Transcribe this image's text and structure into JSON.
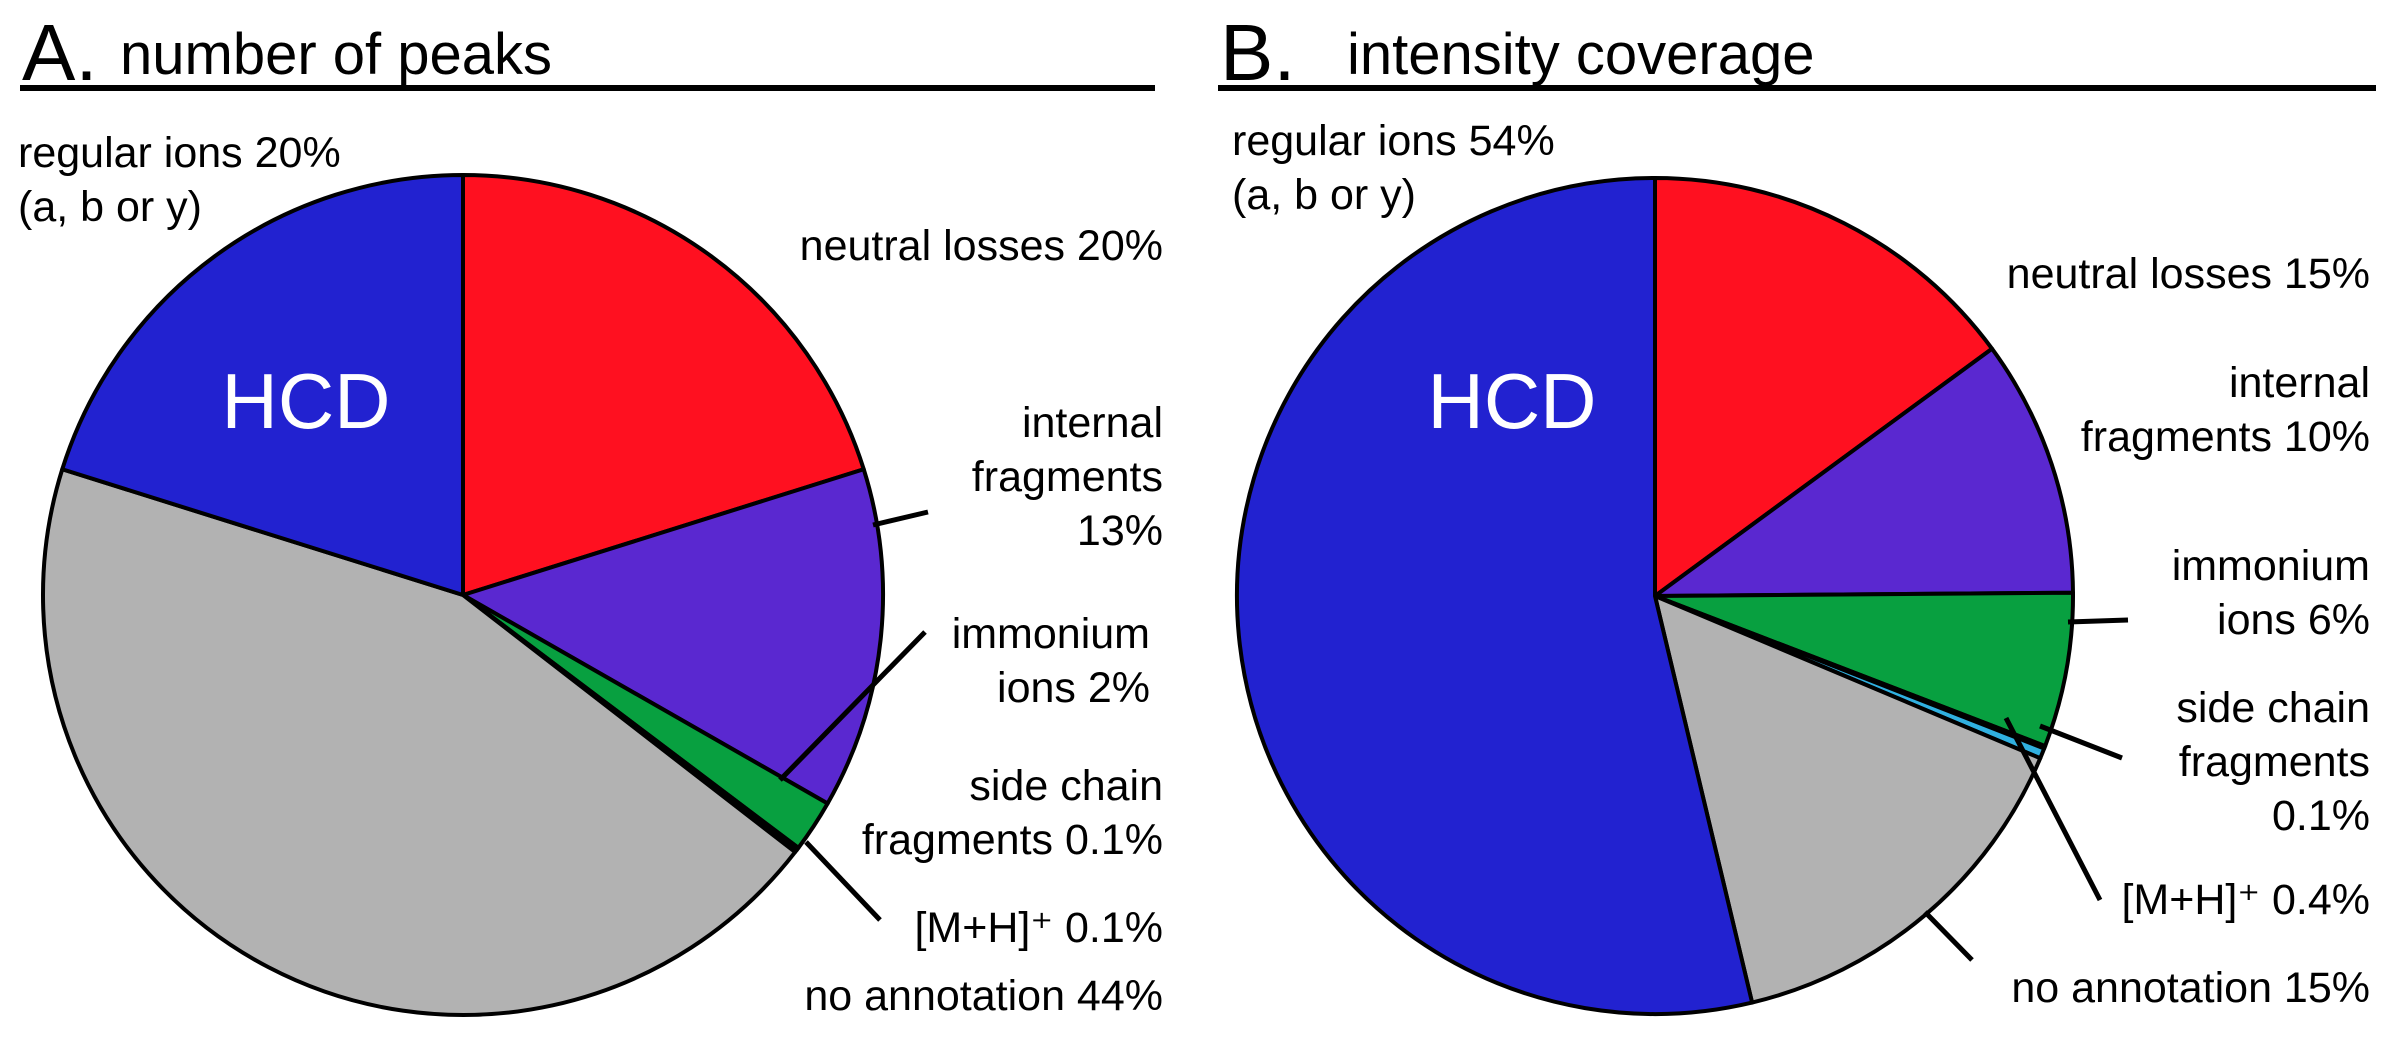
{
  "chart_data": [
    {
      "type": "pie",
      "panel_letter": "A.",
      "title": "number of peaks",
      "center_label": "HCD",
      "slices": [
        {
          "name": "neutral losses",
          "value": 20,
          "label": [
            "neutral losses 20%"
          ],
          "color": "#ff1020"
        },
        {
          "name": "internal fragments",
          "value": 13,
          "label": [
            "internal",
            "fragments",
            "13%"
          ],
          "color": "#5a28d0"
        },
        {
          "name": "immonium ions",
          "value": 2,
          "label": [
            "immonium",
            "ions 2%"
          ],
          "color": "#08a040"
        },
        {
          "name": "side chain fragments",
          "value": 0.1,
          "label": [
            "side chain",
            "fragments 0.1%"
          ],
          "color": "#30b0e0"
        },
        {
          "name": "[M+H]+",
          "value": 0.1,
          "label": [
            "[M+H]⁺ 0.1%"
          ],
          "color": "#e8e8e8"
        },
        {
          "name": "no annotation",
          "value": 44,
          "label": [
            "no annotation 44%"
          ],
          "color": "#b2b2b2"
        },
        {
          "name": "regular ions",
          "value": 20,
          "label": [
            "regular ions 20%",
            "(a, b or y)"
          ],
          "color": "#2222d0"
        }
      ]
    },
    {
      "type": "pie",
      "panel_letter": "B.",
      "title": "intensity coverage",
      "center_label": "HCD",
      "slices": [
        {
          "name": "neutral losses",
          "value": 15,
          "label": [
            "neutral losses 15%"
          ],
          "color": "#ff1020"
        },
        {
          "name": "internal fragments",
          "value": 10,
          "label": [
            "internal",
            "fragments 10%"
          ],
          "color": "#5a28d0"
        },
        {
          "name": "immonium ions",
          "value": 6,
          "label": [
            "immonium",
            "ions 6%"
          ],
          "color": "#08a040"
        },
        {
          "name": "side chain fragments",
          "value": 0.1,
          "label": [
            "side chain",
            "fragments",
            "0.1%"
          ],
          "color": "#30b0e0"
        },
        {
          "name": "[M+H]+",
          "value": 0.4,
          "label": [
            "[M+H]⁺  0.4%"
          ],
          "color": "#30b0e0"
        },
        {
          "name": "no annotation",
          "value": 15,
          "label": [
            "no annotation 15%"
          ],
          "color": "#b2b2b2"
        },
        {
          "name": "regular ions",
          "value": 54,
          "label": [
            "regular ions 54%",
            "(a, b or y)"
          ],
          "color": "#2222d0"
        }
      ]
    }
  ]
}
